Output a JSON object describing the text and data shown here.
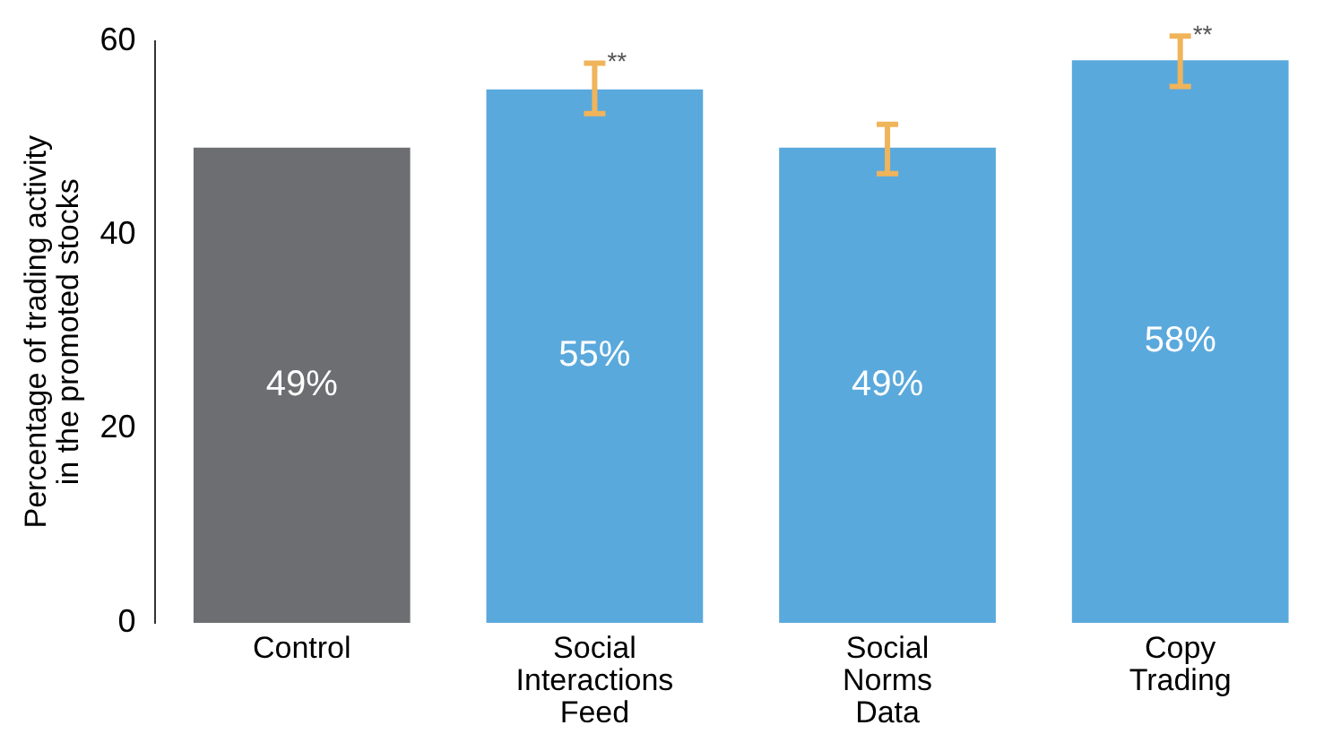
{
  "chart_data": {
    "type": "bar",
    "ylabel": "Percentage of trading activity\nin the promoted stocks",
    "categories": [
      "Control",
      "Social Interactions Feed",
      "Social Norms Data",
      "Copy Trading"
    ],
    "values": [
      49,
      55,
      49,
      58
    ],
    "colors": [
      "#6d6e71",
      "#5aa9dc",
      "#5aa9dc",
      "#5aa9dc"
    ],
    "value_labels": [
      "49%",
      "55%",
      "49%",
      "58%"
    ],
    "errors": [
      null,
      [
        52.5,
        57.7
      ],
      [
        46.3,
        51.4
      ],
      [
        55.3,
        60.5
      ]
    ],
    "annotations": [
      {
        "text": "**",
        "x": "Social Interactions Feed",
        "y": 57.7
      },
      {
        "text": "**",
        "x": "Copy Trading",
        "y": 60.5
      }
    ],
    "ylim": [
      0,
      60
    ],
    "yticks": [
      0,
      20,
      40,
      60
    ],
    "grid": false,
    "legend": false
  }
}
